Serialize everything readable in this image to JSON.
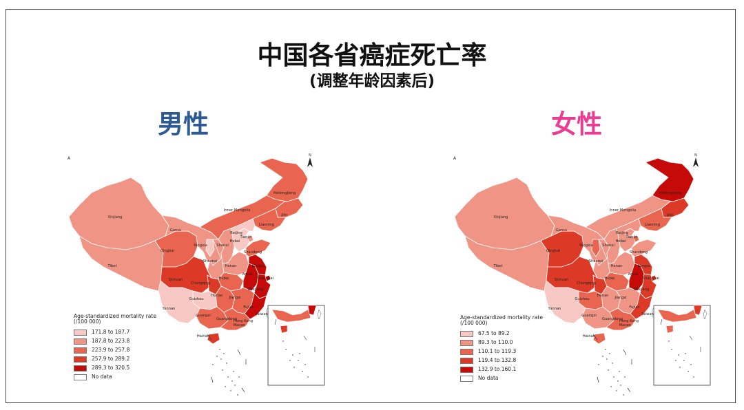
{
  "title": "中国各省癌症死亡率",
  "subtitle": "(调整年龄因素后)",
  "male": {
    "heading": "男性",
    "legend_title": "Age-standardized mortality rate (/100 000)",
    "legend": [
      {
        "label": "171.8 to 187.7",
        "color": "#f8c9c4"
      },
      {
        "label": "187.8 to 223.8",
        "color": "#f09585"
      },
      {
        "label": "223.9 to 257.8",
        "color": "#e9654f"
      },
      {
        "label": "257.9 to 289.2",
        "color": "#dc3a26"
      },
      {
        "label": "289.3 to 320.5",
        "color": "#c60a08"
      }
    ],
    "no_data": "No data",
    "provinces": {
      "Xinjiang": "#f09585",
      "Tibet": "#f09585",
      "Qinghai": "#e9654f",
      "Gansu": "#f09585",
      "Inner Mongolia": "#e9654f",
      "Heilongjiang": "#e9654f",
      "Jilin": "#e9654f",
      "Liaoning": "#e9654f",
      "Beijing": "#f8c9c4",
      "Tianjin": "#f09585",
      "Hebei": "#f8c9c4",
      "Shanxi": "#f09585",
      "Ningxia": "#f8c9c4",
      "Shaanxi": "#f09585",
      "Henan": "#f09585",
      "Shandong": "#e9654f",
      "Sichuan": "#dc3a26",
      "Chongqing": "#dc3a26",
      "Hubei": "#e9654f",
      "Anhui": "#c60a08",
      "Jiangsu": "#c60a08",
      "Shanghai": "#c60a08",
      "Zhejiang": "#c60a08",
      "Hunan": "#e9654f",
      "Jiangxi": "#e9654f",
      "Fujian": "#c60a08",
      "Guizhou": "#f8c9c4",
      "Yunnan": "#f8c9c4",
      "Guangxi": "#e9654f",
      "Guangdong": "#e9654f",
      "Hainan": "#dc3a26",
      "Taiwan": "#ffffff"
    }
  },
  "female": {
    "heading": "女性",
    "legend_title": "Age-standardized mortality rate (/100 000)",
    "legend": [
      {
        "label": "67.5 to 89.2",
        "color": "#f8c9c4"
      },
      {
        "label": "89.3 to 110.0",
        "color": "#f09585"
      },
      {
        "label": "110.1 to 119.3",
        "color": "#e9654f"
      },
      {
        "label": "119.4 to 132.8",
        "color": "#dc3a26"
      },
      {
        "label": "132.9 to 160.1",
        "color": "#c60a08"
      }
    ],
    "no_data": "No data",
    "provinces": {
      "Xinjiang": "#f09585",
      "Tibet": "#f09585",
      "Qinghai": "#dc3a26",
      "Gansu": "#f09585",
      "Inner Mongolia": "#f09585",
      "Heilongjiang": "#c60a08",
      "Jilin": "#dc3a26",
      "Liaoning": "#e9654f",
      "Beijing": "#f09585",
      "Tianjin": "#e9654f",
      "Hebei": "#f09585",
      "Shanxi": "#f09585",
      "Ningxia": "#e9654f",
      "Shaanxi": "#f09585",
      "Henan": "#f09585",
      "Shandong": "#f09585",
      "Sichuan": "#dc3a26",
      "Chongqing": "#dc3a26",
      "Hubei": "#e9654f",
      "Anhui": "#c60a08",
      "Jiangsu": "#dc3a26",
      "Shanghai": "#dc3a26",
      "Zhejiang": "#dc3a26",
      "Hunan": "#f09585",
      "Jiangxi": "#f09585",
      "Fujian": "#dc3a26",
      "Guizhou": "#e9654f",
      "Yunnan": "#f8c9c4",
      "Guangxi": "#f09585",
      "Guangdong": "#e9654f",
      "Hainan": "#e9654f",
      "Taiwan": "#ffffff"
    }
  },
  "labels": {
    "Xinjiang": "Xinjiang",
    "Tibet": "Tibet",
    "Qinghai": "Qinghai",
    "Gansu": "Gansu",
    "Inner Mongolia": "Inner Mongolia",
    "Heilongjiang": "Heilongjiang",
    "Jilin": "Jilin",
    "Liaoning": "Liaoning",
    "Beijing": "Beijing",
    "Tianjin": "Tianjin",
    "Hebei": "Hebei",
    "Shanxi": "Shanxi",
    "Ningxia": "Ningxia",
    "Shaanxi": "Shaanxi",
    "Henan": "Henan",
    "Shandong": "Shandong",
    "Sichuan": "Sichuan",
    "Chongqing": "Chongqing",
    "Hubei": "Hubei",
    "Anhui": "Anhui",
    "Jiangsu": "Jiangsu",
    "Shanghai": "Shanghai",
    "Zhejiang": "Zhejiang",
    "Hunan": "Hunan",
    "Jiangxi": "Jiangxi",
    "Fujian": "Fujian",
    "Guizhou": "Guizhou",
    "Yunnan": "Yunnan",
    "Guangxi": "Guangxi",
    "Guangdong": "Guangdong",
    "Hainan": "Hainan",
    "Taiwan": "Taiwan",
    "Hong Kong": "Hong Kong",
    "Macao": "Macao"
  },
  "north_arrow": "N",
  "corner_mark": "A"
}
